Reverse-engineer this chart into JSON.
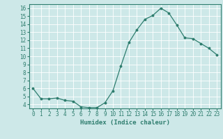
{
  "x": [
    0,
    1,
    2,
    3,
    4,
    5,
    6,
    7,
    8,
    9,
    10,
    11,
    12,
    13,
    14,
    15,
    16,
    17,
    18,
    19,
    20,
    21,
    22,
    23
  ],
  "y": [
    6.0,
    4.7,
    4.7,
    4.8,
    4.5,
    4.4,
    3.7,
    3.6,
    3.6,
    4.2,
    5.7,
    8.8,
    11.7,
    13.3,
    14.6,
    15.1,
    16.0,
    15.4,
    13.9,
    12.3,
    12.2,
    11.6,
    11.0,
    10.2
  ],
  "line_color": "#2e7d6e",
  "marker": "o",
  "markersize": 1.8,
  "linewidth": 0.9,
  "bg_color": "#cde8e8",
  "grid_color": "#ffffff",
  "xlabel": "Humidex (Indice chaleur)",
  "xlabel_fontsize": 6.5,
  "tick_fontsize": 5.5,
  "ylim": [
    3.5,
    16.5
  ],
  "xlim": [
    -0.5,
    23.5
  ],
  "yticks": [
    4,
    5,
    6,
    7,
    8,
    9,
    10,
    11,
    12,
    13,
    14,
    15,
    16
  ],
  "xticks": [
    0,
    1,
    2,
    3,
    4,
    5,
    6,
    7,
    8,
    9,
    10,
    11,
    12,
    13,
    14,
    15,
    16,
    17,
    18,
    19,
    20,
    21,
    22,
    23
  ]
}
